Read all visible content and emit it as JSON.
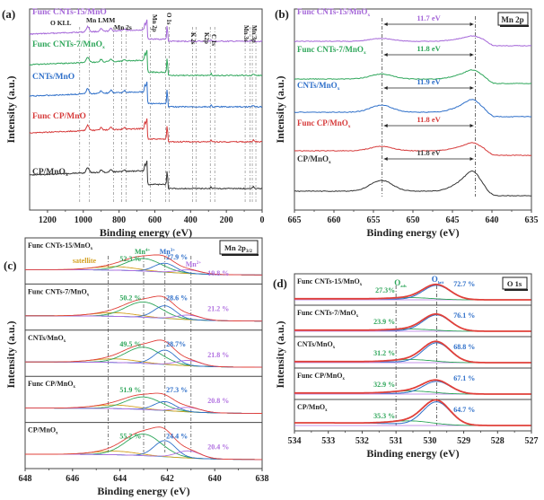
{
  "chart_data": [
    {
      "panel": "(a)",
      "type": "line",
      "title": "",
      "xlabel": "Binding energy (eV)",
      "ylabel": "Intensity (a.u.)",
      "xlim": [
        1300,
        0
      ],
      "xticks": [
        1200,
        1000,
        800,
        600,
        400,
        200,
        0
      ],
      "series": [
        {
          "name": "Func CNTs-15/MnO",
          "color": "#a466d8"
        },
        {
          "name": "Func CNTs-7/MnOx",
          "color": "#2ea65a"
        },
        {
          "name": "CNTs/MnO",
          "color": "#2e6fc9"
        },
        {
          "name": "Func CP/MnO",
          "color": "#d63a3a"
        },
        {
          "name": "CP/MnOx",
          "color": "#333333"
        }
      ],
      "annotations": [
        {
          "text": "O KLL",
          "x": 1000
        },
        {
          "text": "Mn LMM",
          "x": 900
        },
        {
          "text": "Mn 2s",
          "x": 770
        },
        {
          "text": "Mn 2p",
          "x": 650
        },
        {
          "text": "O 1s",
          "x": 530
        },
        {
          "text": "K 2s",
          "x": 378
        },
        {
          "text": "K2p",
          "x": 293
        },
        {
          "text": "C 1s",
          "x": 284
        },
        {
          "text": "Mn 3s",
          "x": 84
        },
        {
          "text": "Mn 3p",
          "x": 49
        }
      ]
    },
    {
      "panel": "(b)",
      "type": "line",
      "title": "Mn 2p",
      "xlabel": "Binding energy (eV)",
      "ylabel": "Intensity (a.u.)",
      "xlim": [
        665,
        635
      ],
      "xticks": [
        665,
        660,
        655,
        650,
        645,
        640,
        635
      ],
      "peaks": {
        "mn2p12": 653.9,
        "mn2p32": 642.1
      },
      "series": [
        {
          "name": "Func CNTs-15/MnOx",
          "color": "#a466d8",
          "splitting": "11.7 eV"
        },
        {
          "name": "Func CNTs-7/MnOx",
          "color": "#2ea65a",
          "splitting": "11.8 eV"
        },
        {
          "name": "CNTs/MnOx",
          "color": "#2e6fc9",
          "splitting": "11.9 eV"
        },
        {
          "name": "Func CP/MnOx",
          "color": "#d63a3a",
          "splitting": "11.8 eV"
        },
        {
          "name": "CP/MnOx",
          "color": "#333333",
          "splitting": "11.8 eV"
        }
      ]
    },
    {
      "panel": "(c)",
      "type": "line",
      "title": "Mn 2p3/2",
      "xlabel": "Binding energy (eV)",
      "ylabel": "Intensity (a.u.)",
      "xlim": [
        648,
        638
      ],
      "xticks": [
        648,
        646,
        644,
        642,
        640,
        638
      ],
      "components": [
        {
          "name": "satellite",
          "center": 644.5,
          "color": "#d4a020"
        },
        {
          "name": "Mn4+",
          "center": 643.0,
          "color": "#2ea65a"
        },
        {
          "name": "Mn3+",
          "center": 642.1,
          "color": "#2e6fc9"
        },
        {
          "name": "Mn2+",
          "center": 641.0,
          "color": "#b070e0"
        }
      ],
      "series": [
        {
          "name": "Func CNTs-15/MnOx",
          "mn4": "52.3 %",
          "mn3": "27.9 %",
          "mn2": "19.8 %"
        },
        {
          "name": "Func CNTs-7/MnOx",
          "mn4": "50.2 %",
          "mn3": "28.6 %",
          "mn2": "21.2 %"
        },
        {
          "name": "CNTs/MnOx",
          "mn4": "49.5 %",
          "mn3": "28.7%",
          "mn2": "21.8 %"
        },
        {
          "name": "Func CP/MnOx",
          "mn4": "51.9 %",
          "mn3": "27.3 %",
          "mn2": "20.8 %"
        },
        {
          "name": "CP/MnOx",
          "mn4": "55.2 %",
          "mn3": "24.4 %",
          "mn2": "20.4 %"
        }
      ]
    },
    {
      "panel": "(d)",
      "type": "line",
      "title": "O 1s",
      "xlabel": "Binding energy (eV)",
      "ylabel": "Intensity (a.u.)",
      "xlim": [
        534,
        527
      ],
      "xticks": [
        534,
        533,
        532,
        531,
        530,
        529,
        528,
        527
      ],
      "components": [
        {
          "name": "Oads",
          "center": 531.0,
          "color": "#2ea65a"
        },
        {
          "name": "Olatt",
          "center": 529.8,
          "color": "#2e6fc9"
        }
      ],
      "series": [
        {
          "name": "Func CNTs-15/MnOx",
          "oads": "27.3%",
          "olatt": "72.7 %"
        },
        {
          "name": "Func CNTs-7/MnOx",
          "oads": "23.9 %",
          "olatt": "76.1 %"
        },
        {
          "name": "CNTs/MnOx",
          "oads": "31.2 %",
          "olatt": "68.8 %"
        },
        {
          "name": "Func CP/MnOx",
          "oads": "32.9 %",
          "olatt": "67.1 %"
        },
        {
          "name": "CP/MnOx",
          "oads": "35.3 %",
          "olatt": "64.7 %"
        }
      ]
    }
  ],
  "labels": {
    "a": "(a)",
    "b": "(b)",
    "c": "(c)",
    "d": "(d)",
    "xlabel": "Binding energy (eV)",
    "ylabel": "Intensity (a.u.)",
    "b_title": "Mn 2p",
    "c_title": "Mn 2p",
    "c_title_sub": "3/2",
    "d_title": "O 1s",
    "satellite": "satellite",
    "mn4": "Mn",
    "mn4_sup": "4+",
    "mn3": "Mn",
    "mn3_sup": "3+",
    "mn2": "Mn",
    "mn2_sup": "2+",
    "oads": "O",
    "oads_sub": "ads",
    "olatt": "O",
    "olatt_sub": "latt"
  }
}
